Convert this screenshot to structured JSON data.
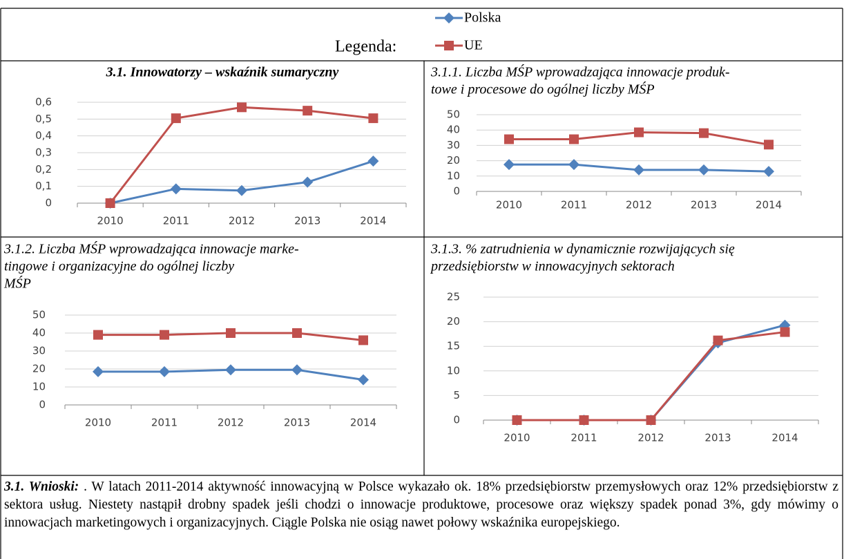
{
  "legend_label": "Legenda:",
  "chart_data": [
    {
      "type": "line",
      "title": [
        "3.1. Innowatorzy – wskaźnik sumaryczny"
      ],
      "categories": [
        "2010",
        "2011",
        "2012",
        "2013",
        "2014"
      ],
      "series": [
        {
          "name": "Polska",
          "color": "#4f81bd",
          "values": [
            0,
            0.085,
            0.075,
            0.125,
            0.25
          ]
        },
        {
          "name": "UE",
          "color": "#c0504d",
          "values": [
            0,
            0.505,
            0.57,
            0.55,
            0.505
          ]
        }
      ],
      "ylim": [
        0,
        0.6
      ],
      "yticks": [
        0,
        {
          "value": 0.1,
          "label": "0,1"
        },
        {
          "value": 0.2,
          "label": "0,2"
        },
        {
          "value": 0.3,
          "label": "0,3"
        },
        {
          "value": 0.4,
          "label": "0,4"
        },
        {
          "value": 0.5,
          "label": "0,5"
        },
        {
          "value": 0.6,
          "label": "0,6"
        }
      ],
      "grid": true
    },
    {
      "type": "line",
      "title": [
        "3.1.1. Liczba MŚP wprowadzająca innowacje produk-",
        "towe i procesowe do ogólnej liczby MŚP"
      ],
      "categories": [
        "2010",
        "2011",
        "2012",
        "2013",
        "2014"
      ],
      "series": [
        {
          "name": "Polska",
          "color": "#4f81bd",
          "values": [
            17.5,
            17.5,
            14,
            14,
            13
          ]
        },
        {
          "name": "UE",
          "color": "#c0504d",
          "values": [
            34,
            34,
            38.5,
            38,
            30.5
          ]
        }
      ],
      "ylim": [
        0,
        50
      ],
      "yticks": [
        0,
        10,
        20,
        30,
        40,
        50
      ],
      "grid": true
    },
    {
      "type": "line",
      "title": [
        "3.1.2. Liczba MŚP wprowadzająca innowacje marke-",
        "tingowe i organizacyjne do ogólnej liczby",
        "MŚP"
      ],
      "categories": [
        "2010",
        "2011",
        "2012",
        "2013",
        "2014"
      ],
      "series": [
        {
          "name": "Polska",
          "color": "#4f81bd",
          "values": [
            18.5,
            18.5,
            19.5,
            19.5,
            14
          ]
        },
        {
          "name": "UE",
          "color": "#c0504d",
          "values": [
            39,
            39,
            40,
            40,
            36
          ]
        }
      ],
      "ylim": [
        0,
        50
      ],
      "yticks": [
        0,
        10,
        20,
        30,
        40,
        50
      ],
      "grid": true
    },
    {
      "type": "line",
      "title": [
        "3.1.3. % zatrudnienia w dynamicznie rozwijających się",
        "przedsiębiorstw w innowacyjnych sektorach"
      ],
      "categories": [
        "2010",
        "2011",
        "2012",
        "2013",
        "2014"
      ],
      "series": [
        {
          "name": "Polska",
          "color": "#4f81bd",
          "values": [
            0,
            0,
            0,
            15.7,
            19.3
          ]
        },
        {
          "name": "UE",
          "color": "#c0504d",
          "values": [
            0,
            0,
            0,
            16.2,
            17.9
          ]
        }
      ],
      "ylim": [
        0,
        25
      ],
      "yticks": [
        0,
        5,
        10,
        15,
        20,
        25
      ],
      "grid": true
    }
  ],
  "conclusions": {
    "heading": "3.1. Wnioski:",
    "text": " . W latach 2011-2014 aktywność innowacyjną w Polsce wykazało ok. 18% przedsiębiorstw przemysłowych oraz 12% przedsiębiorstw z sektora usług. Niestety nastąpił drobny spadek jeśli chodzi o innowacje produktowe, procesowe oraz większy spadek ponad 3%, gdy mówimy o innowacjach marketingowych i organizacyjnych. Ciągle Polska nie osiąg nawet połowy wskaźnika europejskiego."
  }
}
